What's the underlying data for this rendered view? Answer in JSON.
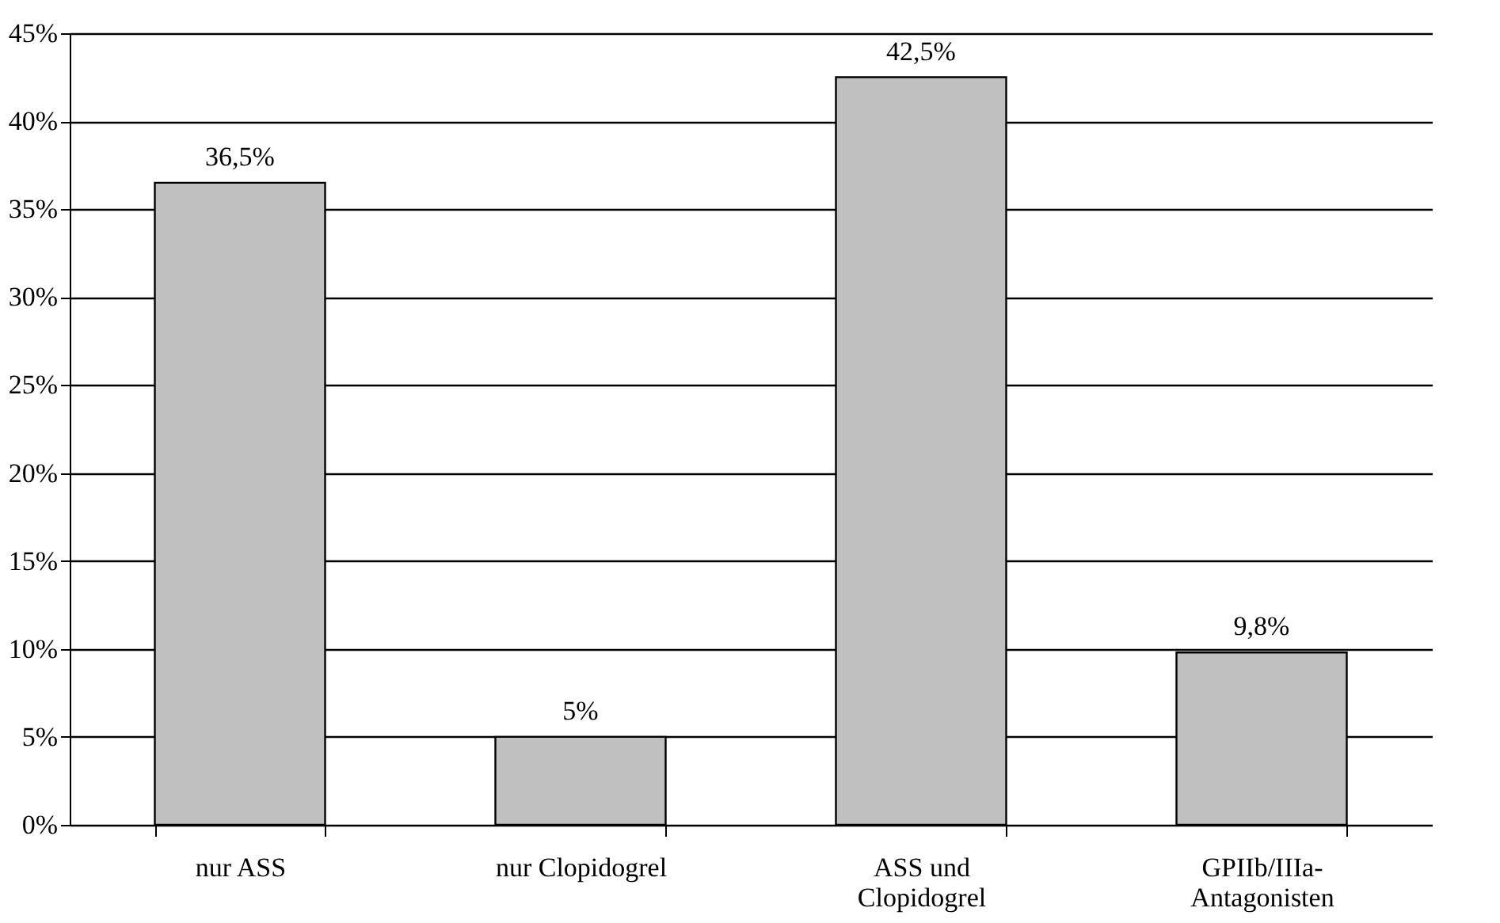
{
  "chart_data": {
    "type": "bar",
    "categories": [
      "nur ASS",
      "nur Clopidogrel",
      "ASS und Clopidogrel",
      "GPIIb/IIIa-Antagonisten"
    ],
    "values": [
      36.5,
      5,
      42.5,
      9.8
    ],
    "value_labels": [
      "36,5%",
      "5%",
      "42,5%",
      "9,8%"
    ],
    "color": "#c0c0c0",
    "ylim": [
      0,
      45
    ],
    "yticks": [
      {
        "value": 0,
        "label": "0%"
      },
      {
        "value": 5,
        "label": "5%"
      },
      {
        "value": 10,
        "label": "10%"
      },
      {
        "value": 15,
        "label": "15%"
      },
      {
        "value": 20,
        "label": "20%"
      },
      {
        "value": 25,
        "label": "25%"
      },
      {
        "value": 30,
        "label": "30%"
      },
      {
        "value": 35,
        "label": "35%"
      },
      {
        "value": 40,
        "label": "40%"
      },
      {
        "value": 45,
        "label": "45%"
      }
    ],
    "grid": "y"
  }
}
